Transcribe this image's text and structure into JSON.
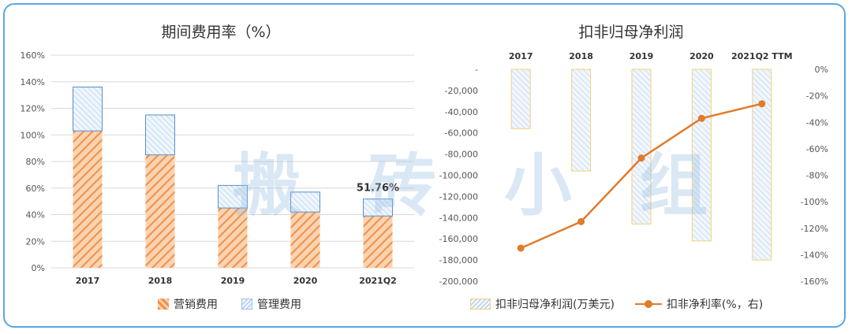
{
  "chart_data": [
    {
      "type": "bar",
      "title": "期间费用率（%）",
      "categories": [
        "2017",
        "2018",
        "2019",
        "2020",
        "2021Q2"
      ],
      "series": [
        {
          "name": "营销费用",
          "values": [
            103,
            85,
            45,
            42,
            39
          ]
        },
        {
          "name": "管理费用",
          "values": [
            33,
            30,
            17,
            15,
            12.76
          ]
        }
      ],
      "stacked": true,
      "ylim": [
        0,
        160
      ],
      "yticks": [
        "0%",
        "20%",
        "40%",
        "60%",
        "80%",
        "100%",
        "120%",
        "140%",
        "160%"
      ],
      "annotation": "51.76%",
      "grid": true,
      "legend": "bottom",
      "colors": {
        "营销费用": "#f4a460",
        "管理费用": "#9ec8ea"
      }
    },
    {
      "type": "bar",
      "title": "扣非归母净利润",
      "categories": [
        "2017",
        "2018",
        "2019",
        "2020",
        "2021Q2 TTM"
      ],
      "series": [
        {
          "name": "扣非归母净利润(万美元)",
          "values": [
            -56000,
            -96000,
            -146000,
            -162000,
            -180000
          ],
          "axis": "left",
          "type": "bar"
        },
        {
          "name": "扣非净利率(%，右)",
          "values": [
            -135,
            -115,
            -67,
            -37,
            -26
          ],
          "axis": "right",
          "type": "line"
        }
      ],
      "ylim": [
        -200000,
        0
      ],
      "yticks_left": [
        "-",
        "-20,000",
        "-40,000",
        "-60,000",
        "-80,000",
        "-100,000",
        "-120,000",
        "-140,000",
        "-160,000",
        "-180,000",
        "-200,000"
      ],
      "y2lim": [
        -160,
        0
      ],
      "yticks_right": [
        "0%",
        "-20%",
        "-40%",
        "-60%",
        "-80%",
        "-100%",
        "-120%",
        "-140%",
        "-160%"
      ],
      "legend": "bottom",
      "colors": {
        "bar": "#b9cfe8",
        "bar_border": "#f2d27a",
        "line": "#e07b2a"
      }
    }
  ],
  "watermark": "搬 砖 小 组"
}
